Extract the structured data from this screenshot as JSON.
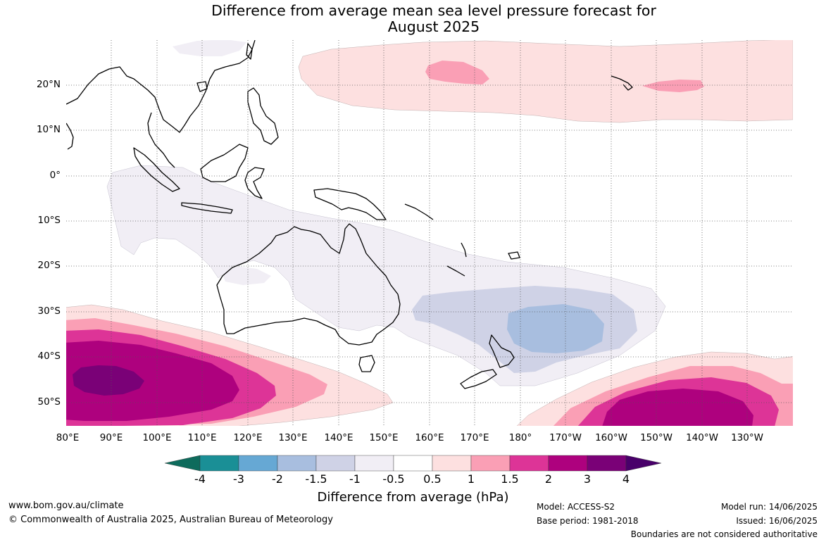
{
  "title": {
    "line1": "Difference from average mean sea level pressure forecast for",
    "line2": "August 2025"
  },
  "map": {
    "lat_labels": [
      "20°N",
      "10°N",
      "0°",
      "10°S",
      "20°S",
      "30°S",
      "40°S",
      "50°S"
    ],
    "lon_labels": [
      "80°E",
      "90°E",
      "100°E",
      "110°E",
      "120°E",
      "130°E",
      "140°E",
      "150°E",
      "160°E",
      "170°E",
      "180°",
      "170°W",
      "160°W",
      "150°W",
      "140°W",
      "130°W"
    ],
    "gridline_color": "#555555",
    "coastline_color": "#000000"
  },
  "colorbar": {
    "ticks": [
      "-4",
      "-3",
      "-2",
      "-1.5",
      "-1",
      "-0.5",
      "0.5",
      "1",
      "1.5",
      "2",
      "3",
      "4"
    ],
    "colors": [
      "#0e6b5c",
      "#1a8f96",
      "#66a8d4",
      "#a8bedf",
      "#cfd2e6",
      "#f1eef5",
      "#ffffff",
      "#fde0e0",
      "#fa9fb5",
      "#dd3497",
      "#ae017e",
      "#7a0177",
      "#49006a"
    ],
    "title": "Difference from average (hPa)"
  },
  "footer": {
    "website": "www.bom.gov.au/climate",
    "copyright": "© Commonwealth of Australia 2025, Australian Bureau of Meteorology",
    "model": "Model: ACCESS-S2",
    "base_period": "Base period: 1981-2018",
    "model_run": "Model run: 14/06/2025",
    "issued": "Issued: 16/06/2025",
    "disclaimer": "Boundaries are not considered authoritative"
  }
}
